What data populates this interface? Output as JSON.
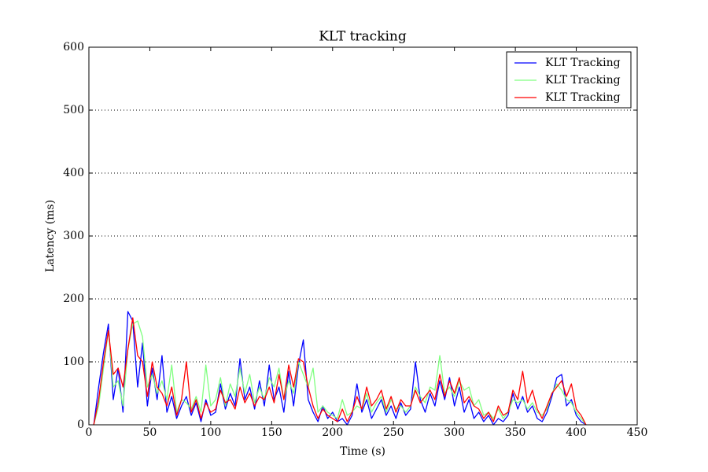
{
  "chart_data": {
    "type": "line",
    "title": "KLT tracking",
    "x_label": "Time (s)",
    "y_label": "Latency (ms)",
    "x": [
      4,
      8,
      12,
      16,
      20,
      24,
      28,
      32,
      36,
      40,
      44,
      48,
      52,
      56,
      60,
      64,
      68,
      72,
      76,
      80,
      84,
      88,
      92,
      96,
      100,
      104,
      108,
      112,
      116,
      120,
      124,
      128,
      132,
      136,
      140,
      144,
      148,
      152,
      156,
      160,
      164,
      168,
      172,
      176,
      180,
      184,
      188,
      192,
      196,
      200,
      204,
      208,
      212,
      216,
      220,
      224,
      228,
      232,
      236,
      240,
      244,
      248,
      252,
      256,
      260,
      264,
      268,
      272,
      276,
      280,
      284,
      288,
      292,
      296,
      300,
      304,
      308,
      312,
      316,
      320,
      324,
      328,
      332,
      336,
      340,
      344,
      348,
      352,
      356,
      360,
      364,
      368,
      372,
      376,
      380,
      384,
      388,
      392,
      396,
      400,
      404,
      408
    ],
    "series": [
      {
        "name": "KLT Tracking",
        "color": "#0000ff",
        "values": [
          0,
          60,
          115,
          160,
          40,
          90,
          20,
          180,
          165,
          60,
          130,
          30,
          90,
          40,
          110,
          20,
          45,
          10,
          30,
          45,
          15,
          35,
          5,
          40,
          15,
          20,
          65,
          25,
          50,
          30,
          105,
          40,
          60,
          25,
          70,
          30,
          95,
          40,
          60,
          20,
          85,
          30,
          95,
          135,
          40,
          20,
          5,
          30,
          10,
          20,
          5,
          10,
          0,
          15,
          65,
          20,
          40,
          10,
          25,
          40,
          15,
          30,
          10,
          35,
          15,
          25,
          100,
          40,
          20,
          50,
          30,
          70,
          40,
          75,
          30,
          60,
          20,
          40,
          10,
          20,
          5,
          15,
          0,
          10,
          5,
          15,
          50,
          25,
          45,
          20,
          30,
          10,
          5,
          20,
          45,
          75,
          80,
          30,
          40,
          15,
          5,
          0
        ]
      },
      {
        "name": "KLT Tracking",
        "color": "#80ff80",
        "values": [
          0,
          30,
          90,
          150,
          60,
          70,
          30,
          120,
          160,
          165,
          140,
          60,
          80,
          50,
          70,
          40,
          95,
          20,
          40,
          35,
          25,
          45,
          20,
          95,
          30,
          40,
          75,
          30,
          65,
          45,
          90,
          50,
          80,
          35,
          60,
          40,
          75,
          60,
          90,
          40,
          70,
          50,
          100,
          80,
          60,
          90,
          20,
          30,
          20,
          15,
          10,
          40,
          15,
          20,
          30,
          25,
          50,
          20,
          35,
          45,
          20,
          40,
          25,
          30,
          20,
          30,
          60,
          45,
          35,
          60,
          55,
          110,
          50,
          60,
          45,
          70,
          55,
          60,
          30,
          40,
          15,
          20,
          10,
          25,
          10,
          20,
          40,
          35,
          40,
          25,
          35,
          20,
          15,
          25,
          50,
          65,
          55,
          40,
          35,
          20,
          10,
          0
        ]
      },
      {
        "name": "KLT Tracking",
        "color": "#ff0000",
        "values": [
          0,
          40,
          100,
          150,
          80,
          90,
          60,
          120,
          170,
          110,
          100,
          45,
          100,
          60,
          50,
          30,
          60,
          15,
          40,
          100,
          20,
          40,
          10,
          35,
          20,
          25,
          55,
          35,
          40,
          25,
          60,
          35,
          50,
          30,
          45,
          40,
          60,
          35,
          80,
          40,
          95,
          60,
          105,
          100,
          60,
          30,
          10,
          25,
          15,
          10,
          5,
          25,
          5,
          20,
          45,
          25,
          60,
          30,
          40,
          55,
          25,
          45,
          20,
          40,
          30,
          30,
          55,
          35,
          45,
          55,
          40,
          80,
          45,
          70,
          50,
          75,
          35,
          45,
          30,
          25,
          10,
          20,
          5,
          30,
          15,
          20,
          55,
          40,
          85,
          35,
          55,
          25,
          10,
          30,
          50,
          60,
          70,
          45,
          65,
          25,
          15,
          0
        ]
      }
    ],
    "xlim": [
      0,
      450
    ],
    "xticks": [
      0,
      50,
      100,
      150,
      200,
      250,
      300,
      350,
      400,
      450
    ],
    "ylim": [
      0,
      600
    ],
    "yticks": [
      0,
      100,
      200,
      300,
      400,
      500,
      600
    ],
    "grid": "y",
    "legend": "upper right"
  }
}
